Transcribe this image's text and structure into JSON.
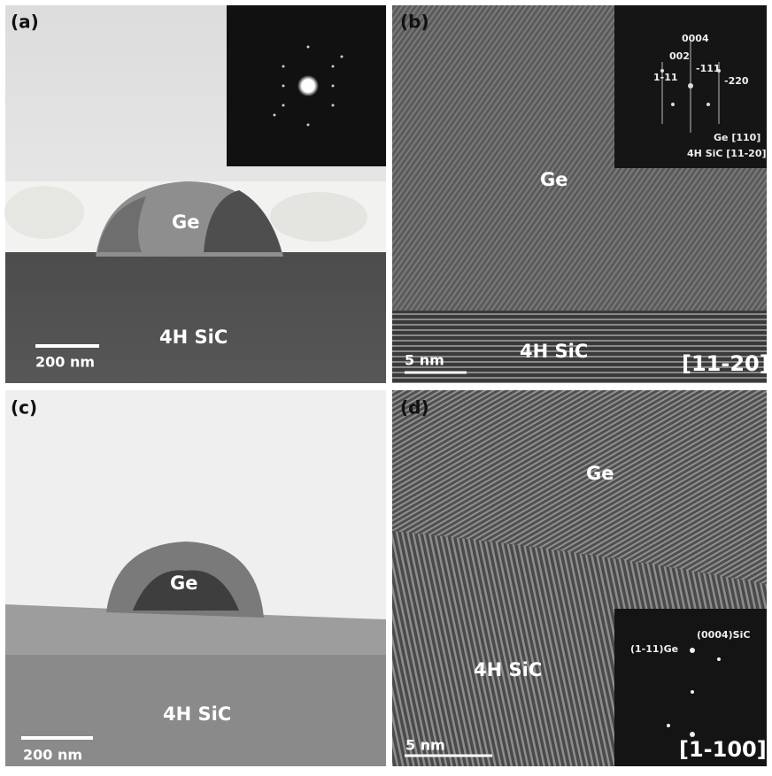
{
  "panels": [
    {
      "label": "(a)",
      "phase_top": "Ge",
      "phase_bottom": "4H SiC",
      "scale_bar": "200 nm"
    },
    {
      "label": "(b)",
      "phase_top": "Ge",
      "phase_bottom": "4H SiC",
      "scale_bar": "5 nm",
      "zone_axis": "[11-20]",
      "inset": {
        "spots": [
          "0004",
          "002",
          "-111",
          "1-11",
          "-220"
        ],
        "directions": [
          "Ge [110]",
          "4H SiC [11-20]"
        ]
      }
    },
    {
      "label": "(c)",
      "phase_top": "Ge",
      "phase_bottom": "4H SiC",
      "scale_bar": "200 nm"
    },
    {
      "label": "(d)",
      "phase_top": "Ge",
      "phase_bottom": "4H SiC",
      "scale_bar": "5 nm",
      "zone_axis": "[1-100]",
      "inset": {
        "spots": [
          "(0004)SiC",
          "(1-11)Ge"
        ]
      }
    }
  ]
}
